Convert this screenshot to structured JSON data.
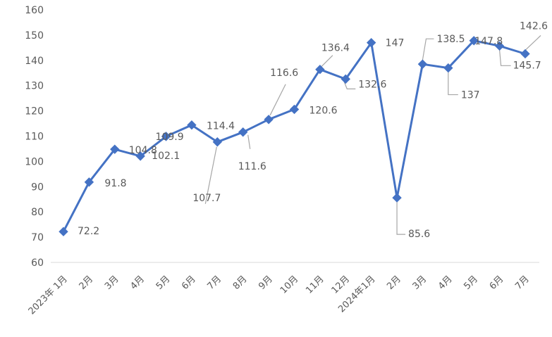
{
  "chart_data": {
    "type": "line",
    "title": "",
    "xlabel": "",
    "ylabel": "",
    "ylim": [
      60,
      160
    ],
    "yticks": [
      60,
      70,
      80,
      90,
      100,
      110,
      120,
      130,
      140,
      150,
      160
    ],
    "grid": false,
    "legend": "none",
    "categories": [
      "2023年 1月",
      "2月",
      "3月",
      "4月",
      "5月",
      "6月",
      "7月",
      "8月",
      "9月",
      "10月",
      "11月",
      "12月",
      "2024年1月",
      "2月",
      "3月",
      "4月",
      "5月",
      "6月",
      "7月"
    ],
    "series": [
      {
        "color": "#4472c4",
        "marker": "diamond",
        "values": [
          72.2,
          91.8,
          104.8,
          102.1,
          109.9,
          114.4,
          107.7,
          111.6,
          116.6,
          120.6,
          136.4,
          132.6,
          147,
          85.6,
          138.5,
          137,
          147.8,
          145.7,
          142.6
        ],
        "data_labels": [
          "72.2",
          "91.8",
          "104.8",
          "102.1",
          "109.9",
          "114.4",
          "107.7",
          "111.6",
          "116.6",
          "120.6",
          "136.4",
          "132.6",
          "147",
          "85.6",
          "138.5",
          "137",
          "147.8",
          "145.7",
          "142.6"
        ]
      }
    ]
  }
}
